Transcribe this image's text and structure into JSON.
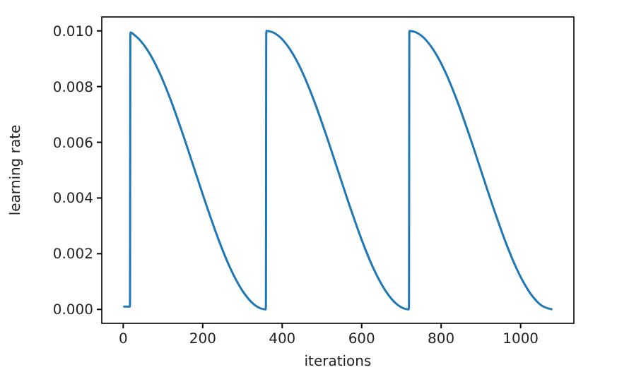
{
  "chart_data": {
    "type": "line",
    "xlabel": "iterations",
    "ylabel": "learning rate",
    "xlim": [
      -54,
      1134
    ],
    "ylim": [
      -0.0005,
      0.0105
    ],
    "xticks": [
      0,
      200,
      400,
      600,
      800,
      1000
    ],
    "yticks": [
      {
        "value": 0,
        "label": "0.000"
      },
      {
        "value": 0.002,
        "label": "0.002"
      },
      {
        "value": 0.004,
        "label": "0.004"
      },
      {
        "value": 0.006,
        "label": "0.006"
      },
      {
        "value": 0.008,
        "label": "0.008"
      },
      {
        "value": 0.01,
        "label": "0.010"
      }
    ],
    "grid": false,
    "series": [
      {
        "color": "#1f77b4",
        "x": [
          0,
          17,
          18,
          30,
          60,
          90,
          120,
          150,
          180,
          210,
          240,
          270,
          300,
          330,
          359,
          360,
          390,
          420,
          450,
          480,
          510,
          540,
          570,
          600,
          630,
          660,
          690,
          719,
          720,
          750,
          780,
          810,
          840,
          870,
          900,
          930,
          960,
          990,
          1020,
          1050,
          1080
        ],
        "values": [
          0.0001,
          0.0001,
          0.00994,
          0.00983,
          0.00933,
          0.00854,
          0.0075,
          0.00629,
          0.005,
          0.00371,
          0.0025,
          0.00146,
          0.00067,
          0.00017,
          0,
          0.01,
          0.00983,
          0.00933,
          0.00854,
          0.0075,
          0.00629,
          0.005,
          0.00371,
          0.0025,
          0.00146,
          0.00067,
          0.00017,
          0,
          0.01,
          0.00983,
          0.00933,
          0.00854,
          0.0075,
          0.00629,
          0.005,
          0.00371,
          0.0025,
          0.00146,
          0.00067,
          0.00017,
          0
        ]
      }
    ]
  }
}
